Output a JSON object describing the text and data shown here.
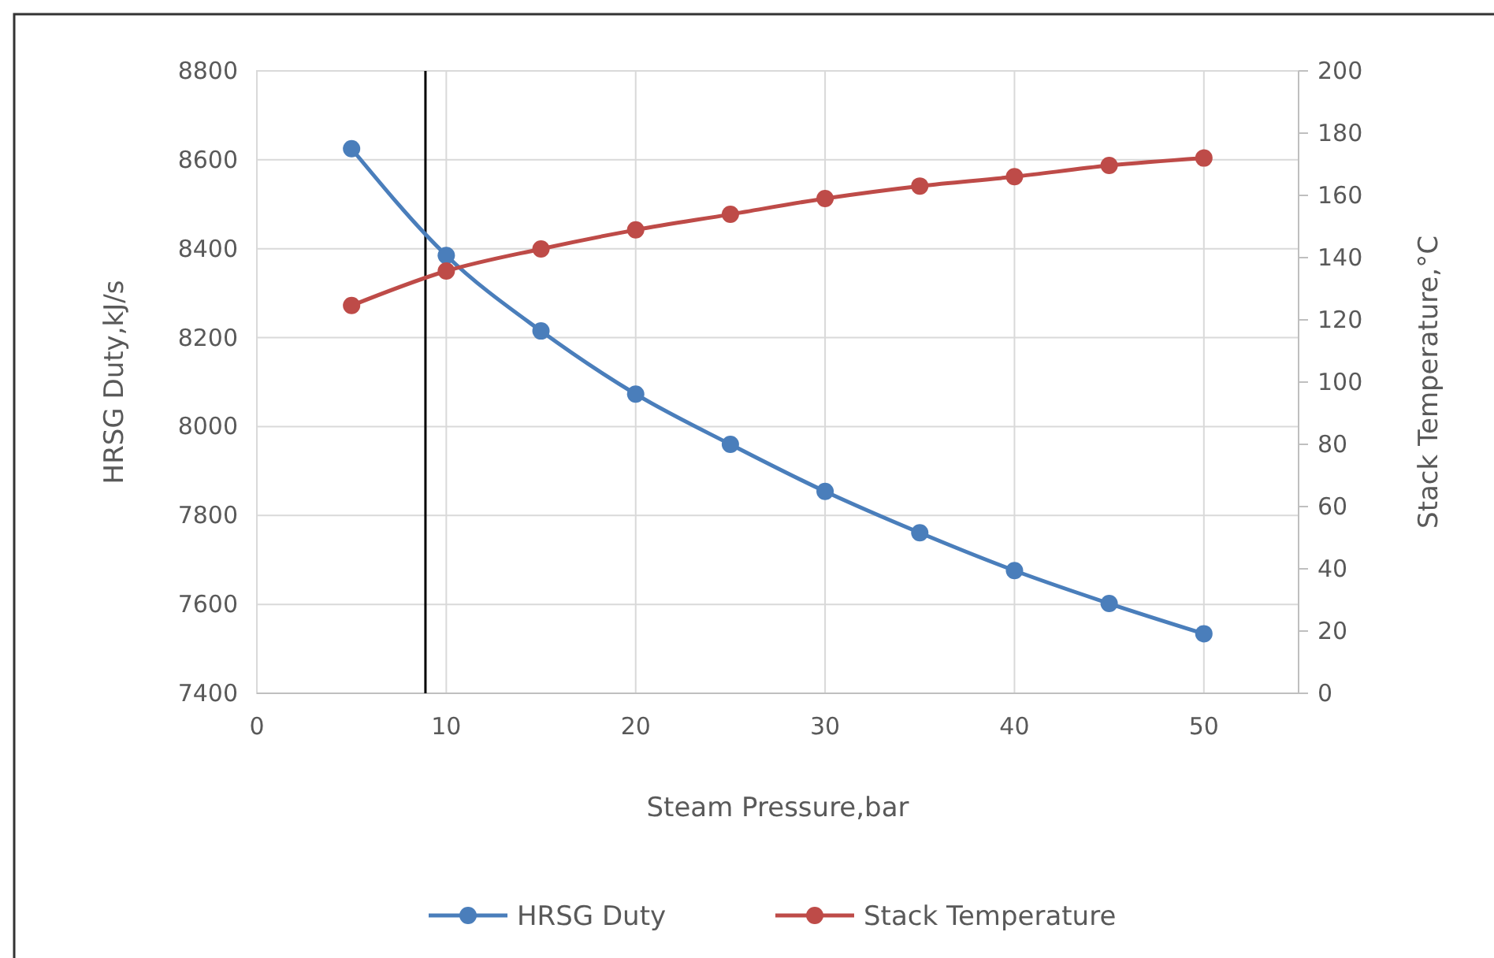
{
  "chart_data": {
    "type": "line",
    "xlabel": "Steam Pressure,bar",
    "ylabel": "HRSG Duty,kJ/s",
    "y2label": "Stack Temperature,°C",
    "x": [
      5,
      10,
      15,
      20,
      25,
      30,
      35,
      40,
      45,
      50
    ],
    "xlim": [
      0,
      55
    ],
    "xticks": [
      0,
      10,
      20,
      30,
      40,
      50
    ],
    "ylim": [
      7400,
      8800
    ],
    "yticks": [
      7400,
      7600,
      7800,
      8000,
      8200,
      8400,
      8600,
      8800
    ],
    "y2lim": [
      0,
      200
    ],
    "y2ticks": [
      0,
      20,
      40,
      60,
      80,
      100,
      120,
      140,
      160,
      180,
      200
    ],
    "grid": true,
    "legend": "bottom",
    "marker": "circle",
    "line_style": "solid",
    "ref_lines": [
      {
        "axis": "x",
        "value": 8.9,
        "color": "#000000"
      }
    ],
    "series": [
      {
        "name": "HRSG Duty",
        "color": "#4a7ebb",
        "values": [
          8625,
          8385,
          8215,
          8073,
          7960,
          7854,
          7761,
          7676,
          7602,
          7534
        ]
      },
      {
        "name": "Stack Temperature",
        "color": "#be4b48",
        "axis": "y2",
        "values": [
          124.6,
          135.7,
          142.8,
          148.9,
          153.9,
          159,
          163,
          166,
          169.6,
          172
        ]
      }
    ]
  }
}
